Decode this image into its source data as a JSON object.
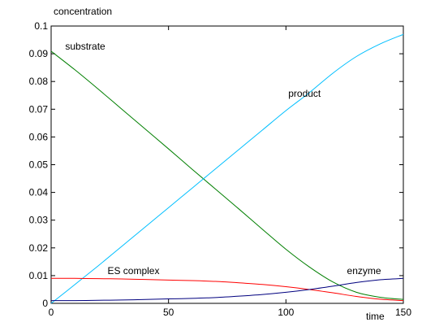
{
  "chart_data": {
    "type": "line",
    "title": "",
    "ylabel": "concentration",
    "xlabel": "time",
    "xlim": [
      0,
      150
    ],
    "ylim": [
      0,
      0.1
    ],
    "xticks": [
      0,
      50,
      100,
      150
    ],
    "yticks": [
      0,
      0.01,
      0.02,
      0.03,
      0.04,
      0.05,
      0.06,
      0.07,
      0.08,
      0.09,
      0.1
    ],
    "xtick_labels": [
      "0",
      "50",
      "100",
      "150"
    ],
    "ytick_labels": [
      "0",
      "0.01",
      "0.02",
      "0.03",
      "0.04",
      "0.05",
      "0.06",
      "0.07",
      "0.08",
      "0.09",
      "0.1"
    ],
    "grid": false,
    "x": [
      0,
      10,
      20,
      30,
      40,
      50,
      60,
      70,
      80,
      90,
      100,
      110,
      120,
      130,
      140,
      150
    ],
    "series": [
      {
        "name": "substrate",
        "color": "#007f00",
        "values": [
          0.0909,
          0.0843,
          0.0773,
          0.0701,
          0.0629,
          0.0557,
          0.0484,
          0.0412,
          0.034,
          0.0267,
          0.0195,
          0.0131,
          0.0077,
          0.004,
          0.0022,
          0.0014
        ]
      },
      {
        "name": "product",
        "color": "#00bfff",
        "values": [
          0.0,
          0.0067,
          0.0135,
          0.0205,
          0.0275,
          0.0345,
          0.0415,
          0.0485,
          0.0555,
          0.0625,
          0.0695,
          0.076,
          0.083,
          0.089,
          0.0935,
          0.097
        ]
      },
      {
        "name": "ES complex",
        "color": "#ff0000",
        "values": [
          0.009,
          0.009,
          0.0089,
          0.0088,
          0.0086,
          0.0084,
          0.0082,
          0.0079,
          0.0074,
          0.0068,
          0.006,
          0.005,
          0.0038,
          0.0025,
          0.0015,
          0.001
        ]
      },
      {
        "name": "enzyme",
        "color": "#00007f",
        "values": [
          0.001,
          0.001,
          0.0011,
          0.0012,
          0.0014,
          0.0016,
          0.0018,
          0.0021,
          0.0026,
          0.0032,
          0.004,
          0.005,
          0.0062,
          0.0075,
          0.0085,
          0.009
        ]
      }
    ],
    "annotations": [
      {
        "text": "substrate",
        "x": 6,
        "y": 0.0915
      },
      {
        "text": "product",
        "x": 101,
        "y": 0.0745
      },
      {
        "text": "ES complex",
        "x": 24,
        "y": 0.0105
      },
      {
        "text": "enzyme",
        "x": 126,
        "y": 0.0105
      }
    ]
  }
}
